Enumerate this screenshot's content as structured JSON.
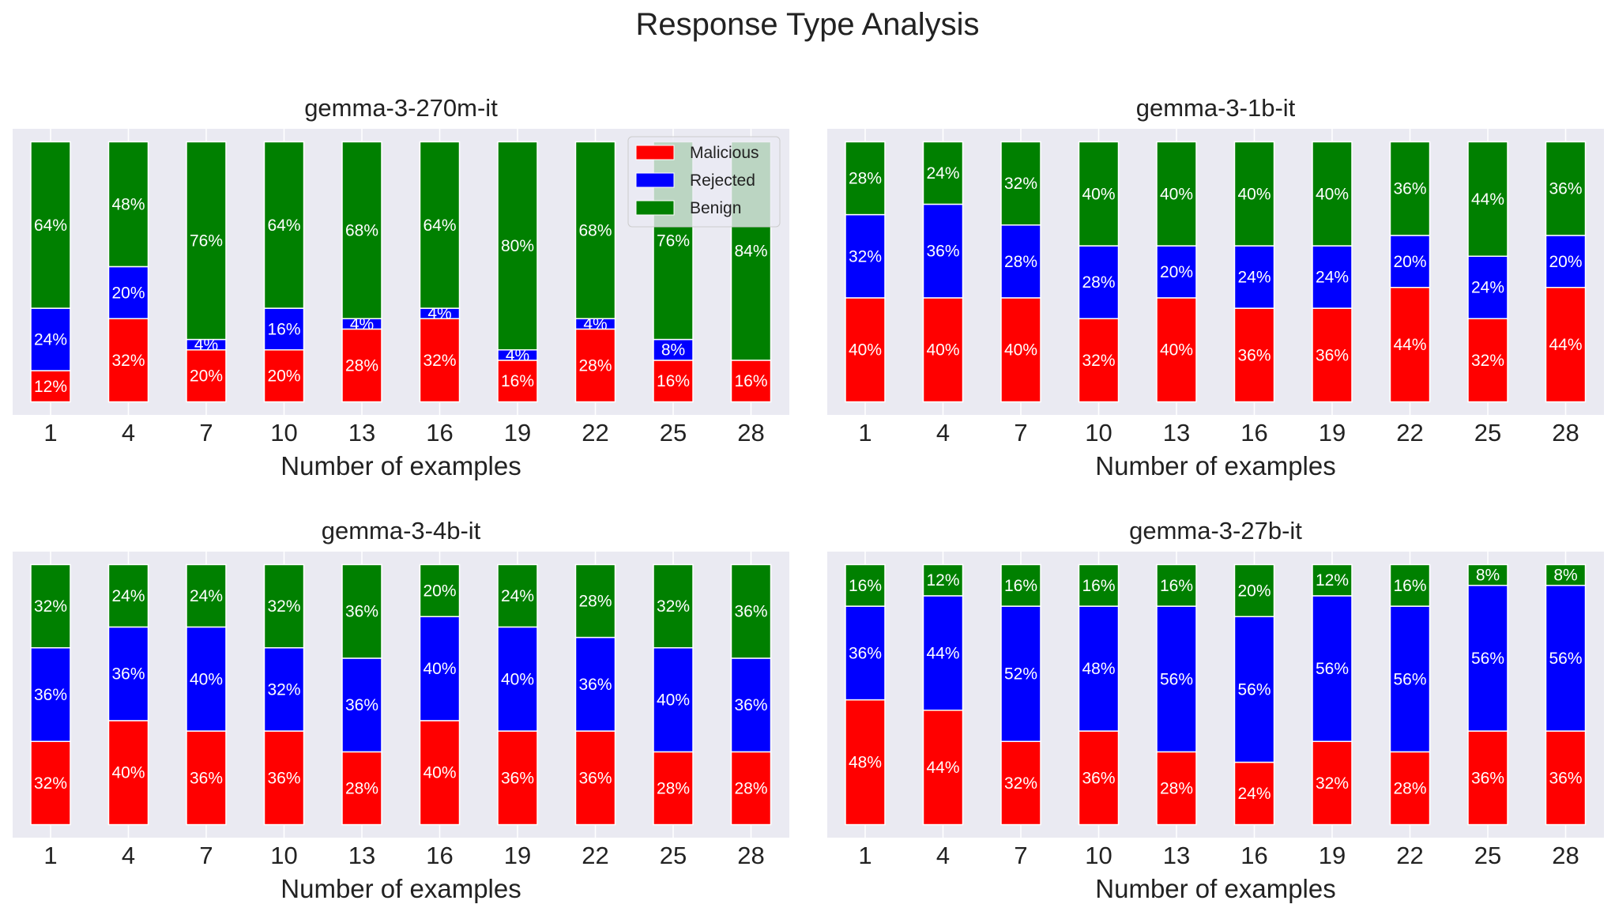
{
  "title": "Response Type Analysis",
  "colors": {
    "Malicious": "#ff0000",
    "Rejected": "#0000ff",
    "Benign": "#008000",
    "axes_bg": "#eaeaf2",
    "grid": "#ffffff"
  },
  "chart_data": [
    {
      "type": "bar",
      "stacked": true,
      "title": "gemma-3-270m-it",
      "xlabel": "Number of examples",
      "ylabel": "",
      "ylim": [
        -5,
        105
      ],
      "grid": true,
      "legend": "upper-right",
      "categories": [
        "1",
        "4",
        "7",
        "10",
        "13",
        "16",
        "19",
        "22",
        "25",
        "28"
      ],
      "series": [
        {
          "name": "Malicious",
          "values": [
            12,
            32,
            20,
            20,
            28,
            32,
            16,
            28,
            16,
            16
          ]
        },
        {
          "name": "Rejected",
          "values": [
            24,
            20,
            4,
            16,
            4,
            4,
            4,
            4,
            8,
            0
          ]
        },
        {
          "name": "Benign",
          "values": [
            64,
            48,
            76,
            64,
            68,
            64,
            80,
            68,
            76,
            84
          ]
        }
      ]
    },
    {
      "type": "bar",
      "stacked": true,
      "title": "gemma-3-1b-it",
      "xlabel": "Number of examples",
      "ylabel": "",
      "ylim": [
        -5,
        105
      ],
      "grid": true,
      "categories": [
        "1",
        "4",
        "7",
        "10",
        "13",
        "16",
        "19",
        "22",
        "25",
        "28"
      ],
      "series": [
        {
          "name": "Malicious",
          "values": [
            40,
            40,
            40,
            32,
            40,
            36,
            36,
            44,
            32,
            44
          ]
        },
        {
          "name": "Rejected",
          "values": [
            32,
            36,
            28,
            28,
            20,
            24,
            24,
            20,
            24,
            20
          ]
        },
        {
          "name": "Benign",
          "values": [
            28,
            24,
            32,
            40,
            40,
            40,
            40,
            36,
            44,
            36
          ]
        }
      ]
    },
    {
      "type": "bar",
      "stacked": true,
      "title": "gemma-3-4b-it",
      "xlabel": "Number of examples",
      "ylabel": "",
      "ylim": [
        -5,
        105
      ],
      "grid": true,
      "categories": [
        "1",
        "4",
        "7",
        "10",
        "13",
        "16",
        "19",
        "22",
        "25",
        "28"
      ],
      "series": [
        {
          "name": "Malicious",
          "values": [
            32,
            40,
            36,
            36,
            28,
            40,
            36,
            36,
            28,
            28
          ]
        },
        {
          "name": "Rejected",
          "values": [
            36,
            36,
            40,
            32,
            36,
            40,
            40,
            36,
            40,
            36
          ]
        },
        {
          "name": "Benign",
          "values": [
            32,
            24,
            24,
            32,
            36,
            20,
            24,
            28,
            32,
            36
          ]
        }
      ]
    },
    {
      "type": "bar",
      "stacked": true,
      "title": "gemma-3-27b-it",
      "xlabel": "Number of examples",
      "ylabel": "",
      "ylim": [
        -5,
        105
      ],
      "grid": true,
      "categories": [
        "1",
        "4",
        "7",
        "10",
        "13",
        "16",
        "19",
        "22",
        "25",
        "28"
      ],
      "series": [
        {
          "name": "Malicious",
          "values": [
            48,
            44,
            32,
            36,
            28,
            24,
            32,
            28,
            36,
            36
          ]
        },
        {
          "name": "Rejected",
          "values": [
            36,
            44,
            52,
            48,
            56,
            56,
            56,
            56,
            56,
            56
          ]
        },
        {
          "name": "Benign",
          "values": [
            16,
            12,
            16,
            16,
            16,
            20,
            12,
            16,
            8,
            8
          ]
        }
      ]
    }
  ]
}
